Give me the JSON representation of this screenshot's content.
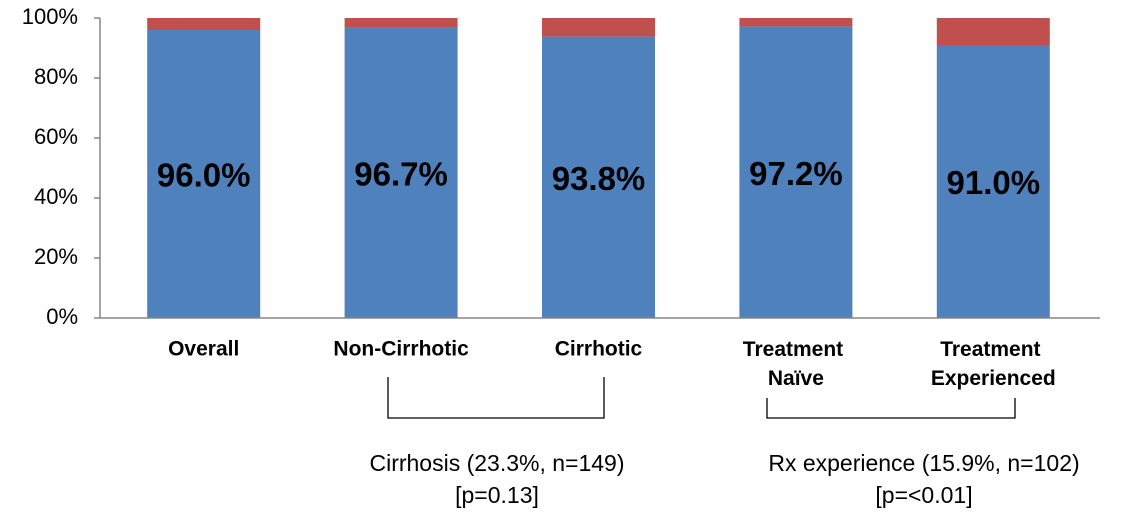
{
  "chart_data": {
    "type": "stacked_bar",
    "categories": [
      "Overall",
      "Non-Cirrhotic",
      "Cirrhotic",
      "Treatment Naïve",
      "Treatment Experienced"
    ],
    "series": [
      {
        "color": "#4f81bd",
        "values": [
          96.0,
          96.7,
          93.8,
          97.2,
          91.0
        ],
        "value_labels": [
          "96.0%",
          "96.7%",
          "93.8%",
          "97.2%",
          "91.0%"
        ]
      },
      {
        "color": "#c0504d",
        "values": [
          4.0,
          3.3,
          6.2,
          2.8,
          9.0
        ]
      }
    ],
    "ylim": [
      0,
      100
    ],
    "yticks": [
      {
        "value": 0,
        "label": "0%"
      },
      {
        "value": 20,
        "label": "20%"
      },
      {
        "value": 40,
        "label": "40%"
      },
      {
        "value": 60,
        "label": "60%"
      },
      {
        "value": 80,
        "label": "80%"
      },
      {
        "value": 100,
        "label": "100%"
      }
    ],
    "annotations": [
      {
        "lines": [
          "Cirrhosis (23.3%, n=149)",
          "[p=0.13]"
        ]
      },
      {
        "lines": [
          "Rx experience (15.9%, n=102)",
          "[p=<0.01]"
        ]
      }
    ]
  }
}
